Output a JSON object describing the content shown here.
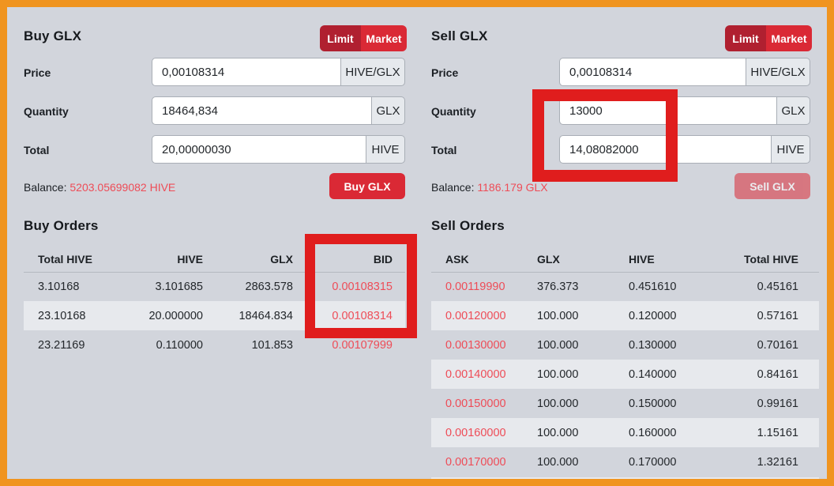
{
  "theme": {
    "frame_orange": "#f0941f",
    "background_gray": "#d2d5dc",
    "accent_red": "#da2935",
    "active_dark_red": "#b02030",
    "price_red": "#ee4c57",
    "highlight_red": "#e01d1d",
    "row_stripe": "#e7e9ed"
  },
  "buy_panel": {
    "title": "Buy GLX",
    "limit_label": "Limit",
    "market_label": "Market",
    "price_label": "Price",
    "price_value": "0,00108314",
    "price_unit": "HIVE/GLX",
    "quantity_label": "Quantity",
    "quantity_value": "18464,834",
    "quantity_unit": "GLX",
    "total_label": "Total",
    "total_value": "20,00000030",
    "total_unit": "HIVE",
    "balance_label": "Balance:",
    "balance_value": "5203.05699082 HIVE",
    "submit_label": "Buy GLX"
  },
  "sell_panel": {
    "title": "Sell GLX",
    "limit_label": "Limit",
    "market_label": "Market",
    "price_label": "Price",
    "price_value": "0,00108314",
    "price_unit": "HIVE/GLX",
    "quantity_label": "Quantity",
    "quantity_value": "13000",
    "quantity_unit": "GLX",
    "total_label": "Total",
    "total_value": "14,08082000",
    "total_unit": "HIVE",
    "balance_label": "Balance:",
    "balance_value": "1186.179 GLX",
    "submit_label": "Sell GLX"
  },
  "buy_orders": {
    "title": "Buy Orders",
    "headers": [
      "Total HIVE",
      "HIVE",
      "GLX",
      "BID"
    ],
    "rows": [
      [
        "3.10168",
        "3.101685",
        "2863.578",
        "0.00108315"
      ],
      [
        "23.10168",
        "20.000000",
        "18464.834",
        "0.00108314"
      ],
      [
        "23.21169",
        "0.110000",
        "101.853",
        "0.00107999"
      ]
    ]
  },
  "sell_orders": {
    "title": "Sell Orders",
    "headers": [
      "ASK",
      "GLX",
      "HIVE",
      "Total HIVE"
    ],
    "rows": [
      [
        "0.00119990",
        "376.373",
        "0.451610",
        "0.45161"
      ],
      [
        "0.00120000",
        "100.000",
        "0.120000",
        "0.57161"
      ],
      [
        "0.00130000",
        "100.000",
        "0.130000",
        "0.70161"
      ],
      [
        "0.00140000",
        "100.000",
        "0.140000",
        "0.84161"
      ],
      [
        "0.00150000",
        "100.000",
        "0.150000",
        "0.99161"
      ],
      [
        "0.00160000",
        "100.000",
        "0.160000",
        "1.15161"
      ],
      [
        "0.00170000",
        "100.000",
        "0.170000",
        "1.32161"
      ]
    ]
  },
  "annotations": {
    "color": "#e01d1d",
    "items": [
      "sell-quantity-total-highlight",
      "bid-column-highlight"
    ]
  }
}
